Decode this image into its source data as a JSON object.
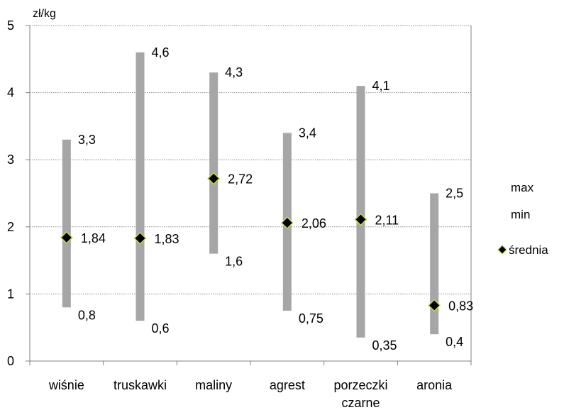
{
  "chart_data": {
    "type": "range-bar",
    "ylabel": "zł/kg",
    "ylim": [
      0,
      5
    ],
    "yticks": [
      "0",
      "1",
      "2",
      "3",
      "4",
      "5"
    ],
    "categories": [
      [
        "wiśnie"
      ],
      [
        "truskawki"
      ],
      [
        "maliny"
      ],
      [
        "agrest"
      ],
      [
        "porzeczki",
        "czarne"
      ],
      [
        "aronia"
      ]
    ],
    "series": [
      {
        "name": "max",
        "values": [
          3.3,
          4.6,
          4.3,
          3.4,
          4.1,
          2.5
        ],
        "labels": [
          "3,3",
          "4,6",
          "4,3",
          "3,4",
          "4,1",
          "2,5"
        ]
      },
      {
        "name": "min",
        "values": [
          0.8,
          0.6,
          1.6,
          0.75,
          0.35,
          0.4
        ],
        "labels": [
          "0,8",
          "0,6",
          "1,6",
          "0,75",
          "0,35",
          "0,4"
        ]
      },
      {
        "name": "średnia",
        "values": [
          1.84,
          1.83,
          2.72,
          2.06,
          2.11,
          0.83
        ],
        "labels": [
          "1,84",
          "1,83",
          "2,72",
          "2,06",
          "2,11",
          "0,83"
        ]
      }
    ],
    "grid": true,
    "legend": "right",
    "colors": {
      "range_bar": "#a6a6a6",
      "marker": "#000000",
      "marker_edge": "#c8d846",
      "grid": "#8c8c8c",
      "axis": "#808080"
    }
  }
}
